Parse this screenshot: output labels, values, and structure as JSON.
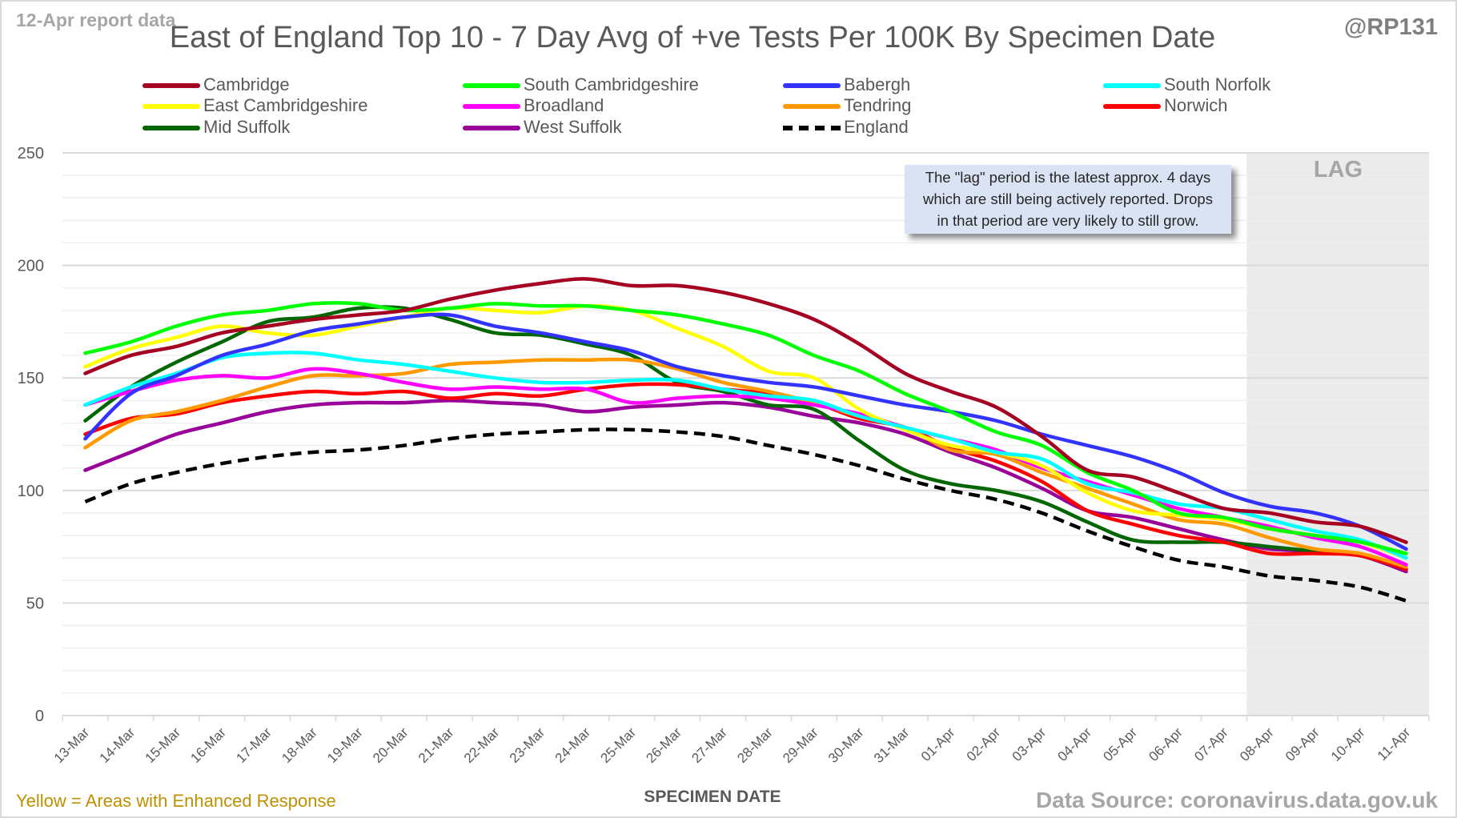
{
  "header": {
    "report_label": "12-Apr report data",
    "handle": "@RP131"
  },
  "footer": {
    "enhanced_note": "Yellow = Areas with Enhanced Response",
    "data_source": "Data Source: coronavirus.data.gov.uk"
  },
  "annotation": {
    "lines": [
      "The \"lag\" period is the latest approx. 4 days",
      "which are still being actively reported.  Drops",
      "in that period are very likely to still grow."
    ],
    "lag_label": "LAG"
  },
  "chart_data": {
    "type": "line",
    "title": "East of England Top 10 - 7 Day Avg of +ve Tests Per 100K By Specimen Date",
    "xlabel": "SPECIMEN DATE",
    "ylabel": "",
    "ylim": [
      0,
      250
    ],
    "yticks": [
      0,
      50,
      100,
      150,
      200,
      250
    ],
    "grid": true,
    "legend_position": "top",
    "lag_period": {
      "from": "08-Apr",
      "to": "11-Apr"
    },
    "categories": [
      "13-Mar",
      "14-Mar",
      "15-Mar",
      "16-Mar",
      "17-Mar",
      "18-Mar",
      "19-Mar",
      "20-Mar",
      "21-Mar",
      "22-Mar",
      "23-Mar",
      "24-Mar",
      "25-Mar",
      "26-Mar",
      "27-Mar",
      "28-Mar",
      "29-Mar",
      "30-Mar",
      "31-Mar",
      "01-Apr",
      "02-Apr",
      "03-Apr",
      "04-Apr",
      "05-Apr",
      "06-Apr",
      "07-Apr",
      "08-Apr",
      "09-Apr",
      "10-Apr",
      "11-Apr"
    ],
    "series": [
      {
        "name": "Cambridge",
        "color": "#a50021",
        "dashed": false,
        "values": [
          152,
          160,
          164,
          170,
          173,
          176,
          178,
          180,
          185,
          189,
          192,
          194,
          191,
          191,
          188,
          183,
          176,
          165,
          152,
          144,
          137,
          124,
          109,
          106,
          99,
          92,
          90,
          86,
          84,
          77
        ]
      },
      {
        "name": "South Cambridgeshire",
        "color": "#00ff00",
        "dashed": false,
        "values": [
          161,
          166,
          173,
          178,
          180,
          183,
          183,
          180,
          181,
          183,
          182,
          182,
          180,
          178,
          174,
          169,
          160,
          153,
          143,
          135,
          126,
          120,
          108,
          100,
          90,
          88,
          83,
          80,
          77,
          72
        ]
      },
      {
        "name": "Babergh",
        "color": "#3333ff",
        "dashed": false,
        "values": [
          123,
          143,
          151,
          160,
          165,
          171,
          174,
          177,
          178,
          173,
          170,
          166,
          162,
          155,
          151,
          148,
          146,
          142,
          138,
          135,
          131,
          125,
          120,
          115,
          108,
          99,
          93,
          90,
          84,
          74
        ]
      },
      {
        "name": "South Norfolk",
        "color": "#00ffff",
        "dashed": false,
        "values": [
          138,
          146,
          152,
          159,
          161,
          161,
          158,
          156,
          153,
          150,
          148,
          148,
          149,
          149,
          145,
          142,
          140,
          133,
          128,
          123,
          117,
          114,
          103,
          99,
          94,
          92,
          87,
          82,
          78,
          70
        ]
      },
      {
        "name": "East Cambridgeshire",
        "color": "#ffff00",
        "dashed": false,
        "values": [
          155,
          163,
          168,
          173,
          170,
          169,
          173,
          177,
          181,
          180,
          179,
          182,
          180,
          172,
          164,
          153,
          150,
          136,
          127,
          120,
          117,
          111,
          99,
          91,
          89,
          87,
          83,
          80,
          77,
          70
        ]
      },
      {
        "name": "Broadland",
        "color": "#ff00ff",
        "dashed": false,
        "values": [
          138,
          144,
          149,
          151,
          150,
          154,
          152,
          148,
          145,
          146,
          145,
          145,
          139,
          141,
          142,
          141,
          138,
          134,
          128,
          123,
          118,
          110,
          104,
          98,
          92,
          88,
          84,
          79,
          75,
          67
        ]
      },
      {
        "name": "Tendring",
        "color": "#ff9900",
        "dashed": false,
        "values": [
          119,
          131,
          135,
          140,
          146,
          151,
          151,
          152,
          156,
          157,
          158,
          158,
          158,
          154,
          148,
          144,
          139,
          133,
          128,
          118,
          116,
          108,
          101,
          94,
          87,
          85,
          79,
          74,
          72,
          66
        ]
      },
      {
        "name": "Norwich",
        "color": "#ff0000",
        "dashed": false,
        "values": [
          125,
          132,
          134,
          139,
          142,
          144,
          143,
          144,
          141,
          143,
          142,
          145,
          147,
          147,
          145,
          143,
          139,
          132,
          128,
          119,
          113,
          104,
          91,
          85,
          80,
          77,
          72,
          72,
          71,
          65
        ]
      },
      {
        "name": "Mid Suffolk",
        "color": "#006600",
        "dashed": false,
        "values": [
          131,
          146,
          157,
          166,
          175,
          177,
          181,
          181,
          176,
          170,
          169,
          165,
          160,
          148,
          144,
          138,
          136,
          122,
          109,
          103,
          100,
          95,
          86,
          78,
          77,
          77,
          75,
          73,
          71,
          65
        ]
      },
      {
        "name": "West Suffolk",
        "color": "#990099",
        "dashed": false,
        "values": [
          109,
          117,
          125,
          130,
          135,
          138,
          139,
          139,
          140,
          139,
          138,
          135,
          137,
          138,
          139,
          137,
          133,
          130,
          125,
          117,
          110,
          101,
          91,
          88,
          83,
          78,
          74,
          73,
          71,
          64
        ]
      },
      {
        "name": "England",
        "color": "#000000",
        "dashed": true,
        "values": [
          95,
          103,
          108,
          112,
          115,
          117,
          118,
          120,
          123,
          125,
          126,
          127,
          127,
          126,
          124,
          120,
          116,
          111,
          105,
          100,
          96,
          90,
          82,
          75,
          69,
          66,
          62,
          60,
          57,
          51
        ]
      }
    ]
  }
}
